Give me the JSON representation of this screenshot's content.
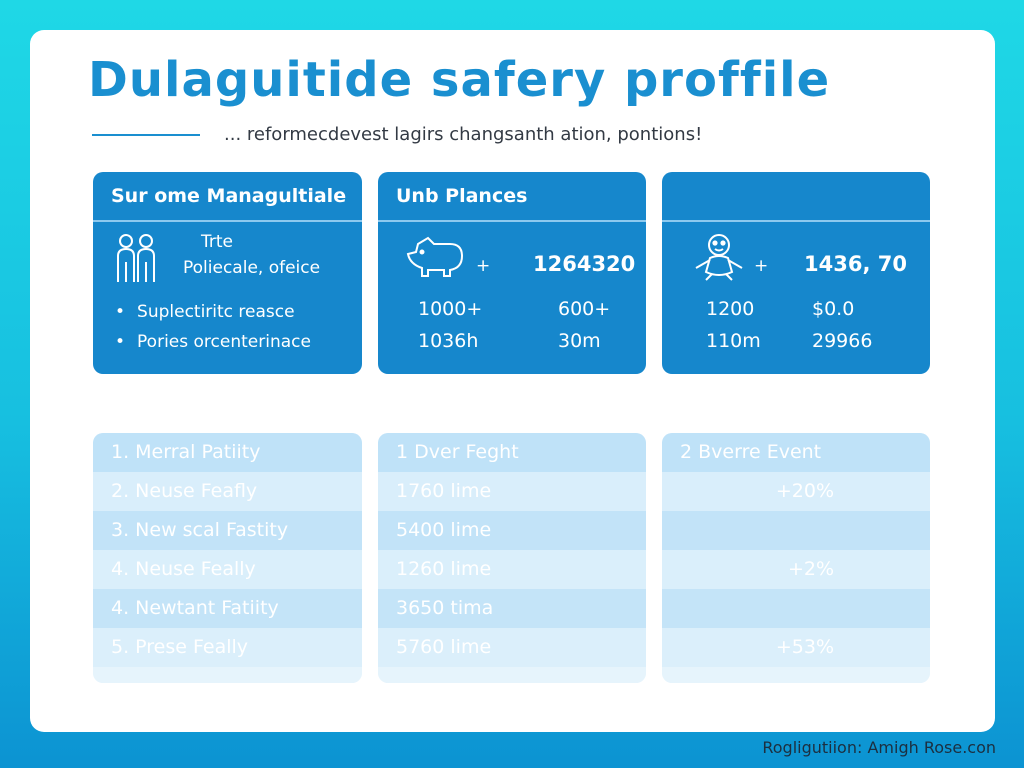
{
  "title": "Dulaguitide safery proffile",
  "subtitle": "... reformecdevest lagirs changsanth ation, pontions!",
  "panels": [
    {
      "header": "Sur ome Managultiale",
      "icon": "people-icon",
      "icon_text_line1": "Trte",
      "icon_text_line2": "Poliecale, ofeice",
      "bullets": [
        "Suplectiritc reasce",
        "Pories orcenterinace"
      ]
    },
    {
      "header": "Unb Plances",
      "icon": "pig-icon",
      "plus": "+",
      "big_value": "1264320",
      "stats": [
        "1000+",
        "600+",
        "1036h",
        "30m"
      ]
    },
    {
      "header": "",
      "icon": "baby-icon",
      "plus": "+",
      "big_value": "1436, 70",
      "stats": [
        "1200",
        "$0.0",
        "110m",
        "29966"
      ]
    }
  ],
  "tables": [
    {
      "rows": [
        "1. Merral Patiity",
        "2. Neuse Feafly",
        "3. New scal Fastity",
        "4. Neuse Feally",
        "4. Newtant Fatiity",
        "5. Prese Feally"
      ]
    },
    {
      "rows": [
        "1 Dver Feght",
        "1760 lime",
        "5400 lime",
        "1260 lime",
        "3650 tima",
        "5760 lime"
      ]
    },
    {
      "rows": [
        "2 Bverre Event",
        "+20%",
        "",
        "+2%",
        "",
        "+53%"
      ]
    }
  ],
  "footer": "Rogligutiion: Amigh Rose.con"
}
